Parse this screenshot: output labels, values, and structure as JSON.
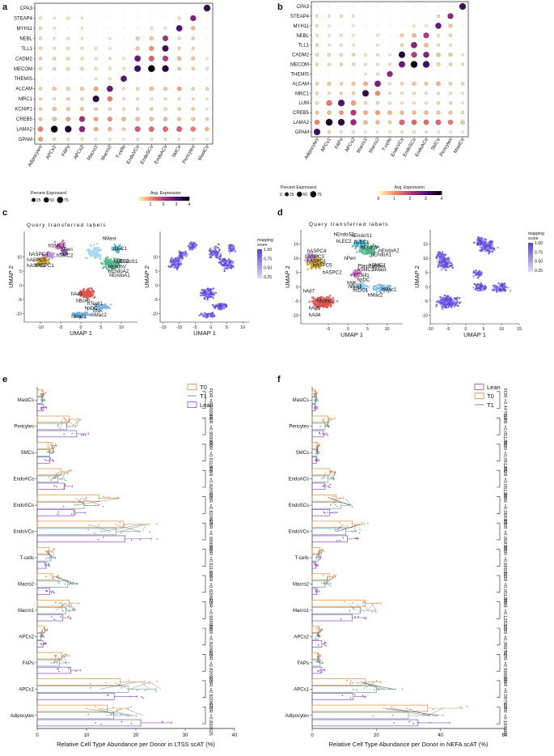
{
  "panel_labels": {
    "a": "a",
    "b": "b",
    "c": "c",
    "d": "d",
    "e": "e",
    "f": "f"
  },
  "colors": {
    "cmap": [
      "#fcfdbf",
      "#fc8961",
      "#b73779",
      "#51127c",
      "#000004"
    ],
    "mapping": [
      "#ded9f5",
      "#5a3fe0"
    ],
    "T0": "#e6893a",
    "T1": "#6f9d9a",
    "Lean": "#8e44c1"
  },
  "legend_text": {
    "percent_title": "Percent Expressed",
    "avg_title": "Avg. Expression",
    "sizes": [
      "25",
      "50",
      "75"
    ],
    "color_ticks": [
      "0",
      "1",
      "2",
      "3",
      "4"
    ],
    "mapping_title": "mapping\nscore",
    "mapping_ticks": [
      "1.00",
      "0.75",
      "0.50",
      "0.25"
    ]
  },
  "chart_data": [
    {
      "id": "a",
      "type": "dotplot",
      "title": "",
      "genes": [
        "CPA3",
        "STEAP4",
        "MYH11",
        "NEBL",
        "TLL1",
        "CADM2",
        "MECOM",
        "THEMIS",
        "ALCAM",
        "MRC1",
        "KCNIP1",
        "CREB5",
        "LAMA2",
        "GPAM"
      ],
      "cell_types": [
        "Adipocytes",
        "APCs1",
        "FAPs",
        "APCs2",
        "Macro1",
        "Macro2",
        "T-cells",
        "EndoVCs",
        "EndoSCs",
        "EndoACs",
        "SMCs",
        "Pericytes",
        "MastCs"
      ],
      "expr": [
        [
          0,
          0,
          0,
          0,
          0,
          0,
          0,
          0,
          0,
          0,
          0,
          0,
          3.4
        ],
        [
          0.2,
          0.1,
          0.2,
          0.1,
          0,
          0,
          0,
          0,
          0,
          0,
          0.2,
          2.6,
          0
        ],
        [
          0.3,
          0.1,
          0,
          0.1,
          0,
          0,
          0,
          0,
          0.2,
          0.1,
          3,
          0.6,
          0
        ],
        [
          0.3,
          0.1,
          0.2,
          0.1,
          0,
          0.1,
          0,
          0.4,
          0.5,
          2.2,
          0.2,
          0.4,
          0
        ],
        [
          0.3,
          0.2,
          0.2,
          0.2,
          0.1,
          0.1,
          0,
          0.5,
          1,
          3.2,
          0.3,
          0.3,
          0
        ],
        [
          0.4,
          0.3,
          0.3,
          0.2,
          0.2,
          0.2,
          0.1,
          2.8,
          1.5,
          2,
          0.6,
          0.5,
          0.1
        ],
        [
          0.3,
          0.3,
          0.3,
          0.3,
          0.2,
          0.2,
          0.2,
          3.2,
          4,
          3.5,
          0.5,
          0.4,
          0.2
        ],
        [
          0,
          0,
          0,
          0,
          0.1,
          0.2,
          3,
          0,
          0,
          0,
          0,
          0,
          0
        ],
        [
          0.4,
          0.5,
          0.4,
          0.5,
          0.8,
          2.8,
          0.2,
          0.3,
          0.6,
          0.5,
          0.8,
          0.4,
          0.3
        ],
        [
          0.3,
          0.2,
          0.4,
          0.3,
          3.6,
          1.2,
          0.2,
          0.2,
          0.2,
          0.2,
          0.2,
          0.2,
          0.1
        ],
        [
          0.4,
          0.6,
          0.5,
          0.5,
          0.4,
          0.3,
          0.2,
          0.3,
          0.4,
          0.3,
          0.4,
          0.4,
          0.1
        ],
        [
          0.5,
          0.6,
          0.8,
          2.2,
          0.8,
          1,
          0.7,
          0.6,
          0.6,
          0.6,
          0.5,
          0.5,
          0.3
        ],
        [
          1.2,
          4,
          3.6,
          2.5,
          0.7,
          0.6,
          0.4,
          1.6,
          1.4,
          1.4,
          1.5,
          1.2,
          0.6
        ],
        [
          0.8,
          0.3,
          0.2,
          0.2,
          0.1,
          0.1,
          0.1,
          0.2,
          0.2,
          0.2,
          0.1,
          0.1,
          0.1
        ]
      ],
      "pct": [
        [
          0,
          0,
          0,
          0,
          0,
          0,
          0,
          0,
          0,
          0,
          0,
          0,
          90
        ],
        [
          10,
          5,
          10,
          5,
          0,
          0,
          0,
          0,
          0,
          0,
          10,
          65,
          0
        ],
        [
          12,
          5,
          0,
          5,
          0,
          0,
          0,
          0,
          8,
          5,
          75,
          25,
          0
        ],
        [
          12,
          5,
          8,
          5,
          0,
          5,
          0,
          18,
          25,
          60,
          10,
          15,
          0
        ],
        [
          12,
          8,
          10,
          8,
          5,
          5,
          0,
          22,
          40,
          80,
          12,
          12,
          0
        ],
        [
          15,
          12,
          12,
          10,
          8,
          8,
          5,
          75,
          55,
          60,
          25,
          20,
          5
        ],
        [
          12,
          12,
          12,
          12,
          8,
          8,
          8,
          85,
          95,
          90,
          20,
          15,
          8
        ],
        [
          0,
          0,
          0,
          0,
          5,
          8,
          75,
          0,
          0,
          0,
          0,
          0,
          0
        ],
        [
          15,
          20,
          15,
          20,
          30,
          75,
          8,
          12,
          25,
          20,
          30,
          15,
          12
        ],
        [
          12,
          8,
          15,
          12,
          85,
          45,
          8,
          8,
          8,
          8,
          8,
          8,
          5
        ],
        [
          15,
          25,
          20,
          20,
          15,
          12,
          8,
          12,
          15,
          12,
          15,
          15,
          5
        ],
        [
          20,
          25,
          30,
          65,
          30,
          35,
          28,
          25,
          25,
          25,
          20,
          20,
          12
        ],
        [
          45,
          95,
          90,
          70,
          28,
          25,
          15,
          55,
          50,
          50,
          55,
          45,
          25
        ],
        [
          35,
          12,
          8,
          8,
          5,
          5,
          5,
          8,
          8,
          8,
          5,
          5,
          5
        ]
      ]
    },
    {
      "id": "b",
      "type": "dotplot",
      "title": "",
      "genes": [
        "CPA3",
        "STEAP4",
        "MYH11",
        "NEBL",
        "TLL1",
        "CADM2",
        "MECOM",
        "THEMIS",
        "ALCAM",
        "MRC1",
        "LUM",
        "CREB5",
        "LAMA2",
        "GPAM"
      ],
      "cell_types": [
        "Adipocytes",
        "APCs1",
        "FAPs",
        "APCs2",
        "Macro1",
        "Macro2",
        "T-cells",
        "EndoVCs",
        "EndoSCs",
        "EndoACs",
        "SMCs",
        "Pericytes",
        "MastCs"
      ],
      "expr": [
        [
          0,
          0,
          0,
          0,
          0,
          0,
          0,
          0,
          0,
          0,
          0,
          0,
          3.2
        ],
        [
          0.2,
          0.1,
          0.2,
          0.1,
          0,
          0,
          0,
          0,
          0,
          0,
          0.3,
          2.4,
          0
        ],
        [
          0.2,
          0.1,
          0,
          0.1,
          0,
          0,
          0,
          0,
          0.1,
          0.1,
          2.8,
          0.5,
          0
        ],
        [
          0.2,
          0.1,
          0.2,
          0.1,
          0,
          0.1,
          0,
          0.4,
          0.6,
          2,
          0.2,
          0.3,
          0
        ],
        [
          0.3,
          0.1,
          0.1,
          0.1,
          0,
          0.1,
          0,
          0.3,
          2.5,
          0.6,
          0.2,
          0.2,
          0
        ],
        [
          0.3,
          0.3,
          0.3,
          0.3,
          0.2,
          0.2,
          0.1,
          3.6,
          2,
          2.5,
          0.5,
          0.5,
          0.1
        ],
        [
          0.3,
          0.3,
          0.3,
          0.3,
          0.2,
          0.2,
          0.2,
          2.8,
          4,
          3.2,
          0.4,
          0.4,
          0.2
        ],
        [
          0,
          0,
          0,
          0,
          0.1,
          0.2,
          2.4,
          0,
          0,
          0,
          0,
          0,
          0
        ],
        [
          0.4,
          0.5,
          0.4,
          0.5,
          0.7,
          2.6,
          0.2,
          0.3,
          0.5,
          0.5,
          0.7,
          0.4,
          0.3
        ],
        [
          0.3,
          0.2,
          0.3,
          0.3,
          3.4,
          1,
          0.2,
          0.2,
          0.2,
          0.2,
          0.2,
          0.2,
          0.1
        ],
        [
          0.3,
          1.2,
          3,
          0.8,
          0.3,
          0.3,
          0.2,
          0.2,
          0.2,
          0.2,
          0.3,
          0.3,
          0.1
        ],
        [
          0.5,
          0.6,
          0.9,
          2,
          0.7,
          0.9,
          0.6,
          0.6,
          0.6,
          0.6,
          0.5,
          0.5,
          0.3
        ],
        [
          1.1,
          3.8,
          3.5,
          2.3,
          0.6,
          0.6,
          0.4,
          1.5,
          1.4,
          1.4,
          1.4,
          1.2,
          0.5
        ],
        [
          3.2,
          0.3,
          0.2,
          0.2,
          0.1,
          0.1,
          0.1,
          0.2,
          0.2,
          0.2,
          0.1,
          0.1,
          0.1
        ]
      ],
      "pct": [
        [
          0,
          0,
          0,
          0,
          0,
          0,
          0,
          0,
          0,
          0,
          0,
          0,
          90
        ],
        [
          10,
          5,
          10,
          5,
          0,
          0,
          0,
          0,
          0,
          0,
          12,
          65,
          0
        ],
        [
          10,
          5,
          0,
          5,
          0,
          0,
          0,
          0,
          8,
          5,
          70,
          22,
          0
        ],
        [
          10,
          5,
          8,
          5,
          0,
          5,
          0,
          20,
          28,
          60,
          10,
          12,
          0
        ],
        [
          12,
          5,
          8,
          5,
          0,
          5,
          0,
          15,
          75,
          30,
          10,
          8,
          0
        ],
        [
          15,
          12,
          12,
          12,
          8,
          8,
          5,
          85,
          60,
          70,
          25,
          20,
          5
        ],
        [
          12,
          12,
          12,
          12,
          8,
          8,
          8,
          80,
          95,
          90,
          20,
          15,
          8
        ],
        [
          0,
          0,
          0,
          0,
          5,
          8,
          65,
          0,
          0,
          0,
          0,
          0,
          0
        ],
        [
          15,
          20,
          15,
          20,
          28,
          75,
          8,
          12,
          25,
          20,
          28,
          15,
          12
        ],
        [
          12,
          8,
          12,
          12,
          85,
          40,
          8,
          8,
          8,
          8,
          8,
          8,
          5
        ],
        [
          15,
          60,
          90,
          45,
          12,
          12,
          8,
          8,
          8,
          8,
          15,
          12,
          5
        ],
        [
          20,
          25,
          30,
          62,
          30,
          35,
          28,
          25,
          25,
          25,
          20,
          20,
          12
        ],
        [
          45,
          95,
          90,
          70,
          28,
          25,
          15,
          55,
          50,
          50,
          55,
          45,
          25
        ],
        [
          85,
          12,
          8,
          8,
          5,
          5,
          5,
          8,
          8,
          8,
          5,
          5,
          5
        ]
      ]
    },
    {
      "id": "c",
      "type": "scatter",
      "title": "Query transferred labels",
      "xlabel": "UMAP 1",
      "ylabel": "UMAP 2",
      "left": {
        "xlim": [
          -14,
          14
        ],
        "ylim": [
          -13,
          19
        ],
        "xticks": [
          "-10",
          "-5",
          "0",
          "5",
          "10"
        ],
        "yticks": [
          "10",
          "5",
          "0",
          "-5",
          "-10"
        ],
        "labels": [
          "hMast",
          "hSMC1",
          "hPeri",
          "hSMC2",
          "hASPC4",
          "hASPC5",
          "hASPC2",
          "hASPC1",
          "hLEC1",
          "hLEC2",
          "hEndoS1",
          "hEndoV",
          "hEndoA2",
          "hEndoA1",
          "hAd1",
          "hBcell",
          "hTcell1",
          "hpDC",
          "hNK",
          "hMac1",
          "hMac2"
        ]
      },
      "right": {
        "xlim": [
          -16,
          12
        ],
        "ylim": [
          -13,
          19
        ],
        "xticks": [
          "-15",
          "-10",
          "-5",
          "0",
          "5",
          "10"
        ],
        "yticks": [
          "10",
          "5",
          "0",
          "-5",
          "-10"
        ]
      }
    },
    {
      "id": "d",
      "type": "scatter",
      "title": "Query transferred labels",
      "xlabel": "UMAP 1",
      "ylabel": "UMAP 2",
      "left": {
        "xlim": [
          -12,
          14
        ],
        "ylim": [
          -13,
          20
        ],
        "xticks": [
          "-5",
          "0",
          "5",
          "10"
        ],
        "yticks": [
          "15",
          "10",
          "5",
          "0",
          "-5",
          "-10"
        ],
        "labels": [
          "hEndoS2",
          "hEndoS1",
          "hLEC2",
          "hLEC1",
          "hEndoA2",
          "hEndoV",
          "hEndoA1",
          "hASPC4",
          "hPeri",
          "hSMC1",
          "hASPC3",
          "hASPC1",
          "hASPC5",
          "hMast",
          "hSMC2",
          "hASPC2",
          "hTcell1",
          "hpDC",
          "hNK",
          "hBcell",
          "hcDC1",
          "hMac1",
          "hMac2",
          "hAd7",
          "hTcell2",
          "hAd1",
          "hAd4",
          "Plasmablast"
        ]
      },
      "right": {
        "xlim": [
          -10,
          15
        ],
        "ylim": [
          -13,
          20
        ],
        "xticks": [
          "-10",
          "-5",
          "0",
          "5",
          "10",
          "15"
        ],
        "yticks": [
          "15",
          "10",
          "5",
          "0",
          "-5",
          "-10"
        ]
      }
    },
    {
      "id": "e",
      "type": "bar",
      "title": "",
      "xlabel": "Relative Cell Type Abundance per Donor in LTSS scAT (%)",
      "xlim": [
        0,
        40
      ],
      "xticks": [
        "0",
        "10",
        "20",
        "30",
        "40"
      ],
      "categories": [
        "MastCs",
        "Pericytes",
        "SMCs",
        "EndoACs",
        "EndoSCs",
        "EndoVCs",
        "T-cells",
        "Macro2",
        "Macro1",
        "APCs2",
        "FAPs",
        "APCs1",
        "Adipocytes"
      ],
      "series": [
        {
          "name": "T0",
          "values": [
            1.2,
            6.5,
            3.0,
            4.8,
            12.5,
            17.5,
            2.4,
            3.2,
            6.5,
            1.5,
            5.0,
            16.8,
            14.2
          ]
        },
        {
          "name": "T1",
          "values": [
            1.0,
            6.0,
            2.5,
            4.2,
            9.5,
            16.0,
            2.8,
            6.2,
            5.8,
            0.8,
            4.5,
            18.5,
            15.5
          ]
        },
        {
          "name": "Lean",
          "values": [
            1.3,
            8.0,
            2.5,
            5.5,
            7.5,
            17.8,
            1.8,
            2.5,
            5.2,
            1.2,
            6.8,
            15.6,
            21.0
          ]
        }
      ],
      "fdr": [
        "FDR =0.999999",
        "FDR =0.999999",
        "FDR =0.911806",
        "FDR =0.820625",
        "FDR =0.820625",
        "FDR =0.999999",
        "FDR =0.911806",
        "FDR =0.820625",
        "FDR =0.999999",
        "FDR =0.820625",
        "FDR =0.820625",
        "FDR =0.820625",
        "FDR =0.820625"
      ]
    },
    {
      "id": "f",
      "type": "bar",
      "title": "",
      "xlabel": "Relative Cell Type Abundance per Donor in NEFA scAT (%)",
      "xlim": [
        0,
        60
      ],
      "xticks": [
        "0",
        "20",
        "40",
        "60"
      ],
      "categories": [
        "MastCs",
        "Pericytes",
        "SMCs",
        "EndoACs",
        "EndoSCs",
        "EndoVCs",
        "T-cells",
        "Macro2",
        "Macro1",
        "APCs2",
        "FAPs",
        "APCs1",
        "Adipocytes"
      ],
      "series": [
        {
          "name": "Lean",
          "values": [
            1.0,
            3.5,
            1.5,
            4.0,
            5.5,
            11.0,
            1.2,
            1.5,
            12.5,
            3.0,
            3.0,
            12.8,
            33.0
          ]
        },
        {
          "name": "T0",
          "values": [
            1.0,
            5.0,
            1.8,
            5.5,
            7.5,
            12.5,
            2.5,
            5.5,
            16.5,
            2.2,
            2.0,
            16.5,
            36.0
          ]
        },
        {
          "name": "T1",
          "values": [
            1.2,
            4.0,
            1.5,
            5.0,
            9.0,
            10.5,
            2.0,
            4.0,
            15.0,
            1.8,
            2.5,
            20.0,
            30.0
          ]
        }
      ],
      "fdr": [
        "FDR =0.447614",
        "FDR =0.051289",
        "FDR =0.051289",
        "FDR =0.051289",
        "FDR =0.068385",
        "FDR =0.068385",
        "FDR =0.689010",
        "FDR =0.051289",
        "FDR =0.128223",
        "FDR =0.389797",
        "FDR =0.999999",
        "FDR =0.087924",
        "FDR =0.169660"
      ]
    }
  ]
}
